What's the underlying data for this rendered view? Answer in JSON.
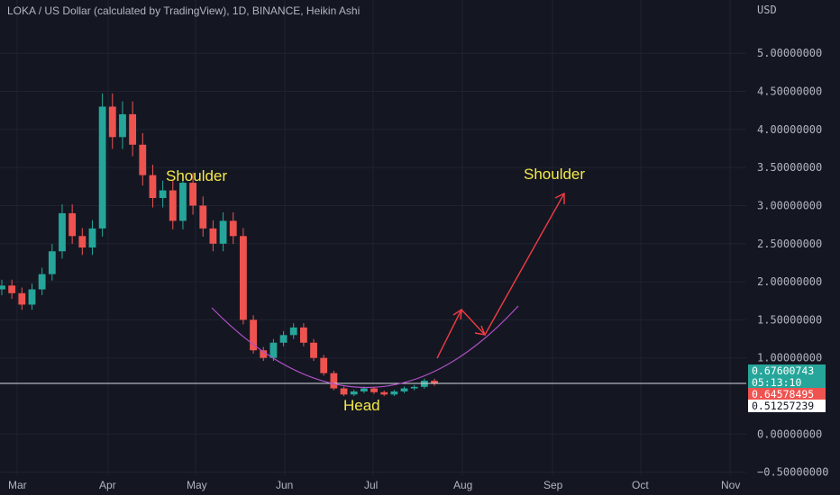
{
  "chart_title": "LOKA / US Dollar (calculated by TradingView), 1D, BINANCE, Heikin Ashi",
  "currency": "USD",
  "colors": {
    "up": "#26a69a",
    "down": "#ef5350",
    "background": "#141722",
    "grid": "#1f2330",
    "curve": "#b04fc6",
    "arrow": "#ef3b44",
    "annotation": "#f5e94b"
  },
  "price_tags": {
    "current": "0.67600743",
    "countdown": "05:13:10",
    "close": "0.64578495",
    "level": "0.51257239"
  },
  "chart_data": {
    "type": "candlestick",
    "style": "Heikin Ashi",
    "ylim": [
      -0.8,
      5.7
    ],
    "y_ticks": [
      "5.00000000",
      "4.50000000",
      "4.00000000",
      "3.50000000",
      "3.00000000",
      "2.50000000",
      "2.00000000",
      "1.50000000",
      "1.00000000",
      "0.00000000",
      "−0.50000000"
    ],
    "y_tick_values": [
      5.0,
      4.5,
      4.0,
      3.5,
      3.0,
      2.5,
      2.0,
      1.5,
      1.0,
      0.0,
      -0.5
    ],
    "x_ticks": [
      "Mar",
      "Apr",
      "May",
      "Jun",
      "Jul",
      "Aug",
      "Sep",
      "Oct",
      "Nov"
    ],
    "horizontal_line": 0.51257239,
    "series": [
      {
        "o": 1.9,
        "c": 1.95
      },
      {
        "o": 1.95,
        "c": 1.85
      },
      {
        "o": 1.85,
        "c": 1.7
      },
      {
        "o": 1.7,
        "c": 1.9
      },
      {
        "o": 1.9,
        "c": 2.1
      },
      {
        "o": 2.1,
        "c": 2.4
      },
      {
        "o": 2.4,
        "c": 2.9
      },
      {
        "o": 2.9,
        "c": 2.6
      },
      {
        "o": 2.6,
        "c": 2.45
      },
      {
        "o": 2.45,
        "c": 2.7
      },
      {
        "o": 2.7,
        "c": 4.3
      },
      {
        "o": 4.3,
        "c": 3.9
      },
      {
        "o": 3.9,
        "c": 4.2
      },
      {
        "o": 4.2,
        "c": 3.8
      },
      {
        "o": 3.8,
        "c": 3.4
      },
      {
        "o": 3.4,
        "c": 3.1
      },
      {
        "o": 3.1,
        "c": 3.2
      },
      {
        "o": 3.2,
        "c": 2.8
      },
      {
        "o": 2.8,
        "c": 3.3
      },
      {
        "o": 3.3,
        "c": 3.0
      },
      {
        "o": 3.0,
        "c": 2.7
      },
      {
        "o": 2.7,
        "c": 2.5
      },
      {
        "o": 2.5,
        "c": 2.8
      },
      {
        "o": 2.8,
        "c": 2.6
      },
      {
        "o": 2.6,
        "c": 1.5
      },
      {
        "o": 1.5,
        "c": 1.1
      },
      {
        "o": 1.1,
        "c": 1.0
      },
      {
        "o": 1.0,
        "c": 1.2
      },
      {
        "o": 1.2,
        "c": 1.3
      },
      {
        "o": 1.3,
        "c": 1.4
      },
      {
        "o": 1.4,
        "c": 1.2
      },
      {
        "o": 1.2,
        "c": 1.0
      },
      {
        "o": 1.0,
        "c": 0.8
      },
      {
        "o": 0.8,
        "c": 0.6
      },
      {
        "o": 0.6,
        "c": 0.52
      },
      {
        "o": 0.52,
        "c": 0.56
      },
      {
        "o": 0.56,
        "c": 0.6
      },
      {
        "o": 0.6,
        "c": 0.55
      },
      {
        "o": 0.55,
        "c": 0.52
      },
      {
        "o": 0.52,
        "c": 0.56
      },
      {
        "o": 0.56,
        "c": 0.6
      },
      {
        "o": 0.6,
        "c": 0.62
      },
      {
        "o": 0.62,
        "c": 0.7
      },
      {
        "o": 0.7,
        "c": 0.66
      }
    ],
    "annotations": [
      "Shoulder",
      "Head",
      "Shoulder"
    ]
  }
}
